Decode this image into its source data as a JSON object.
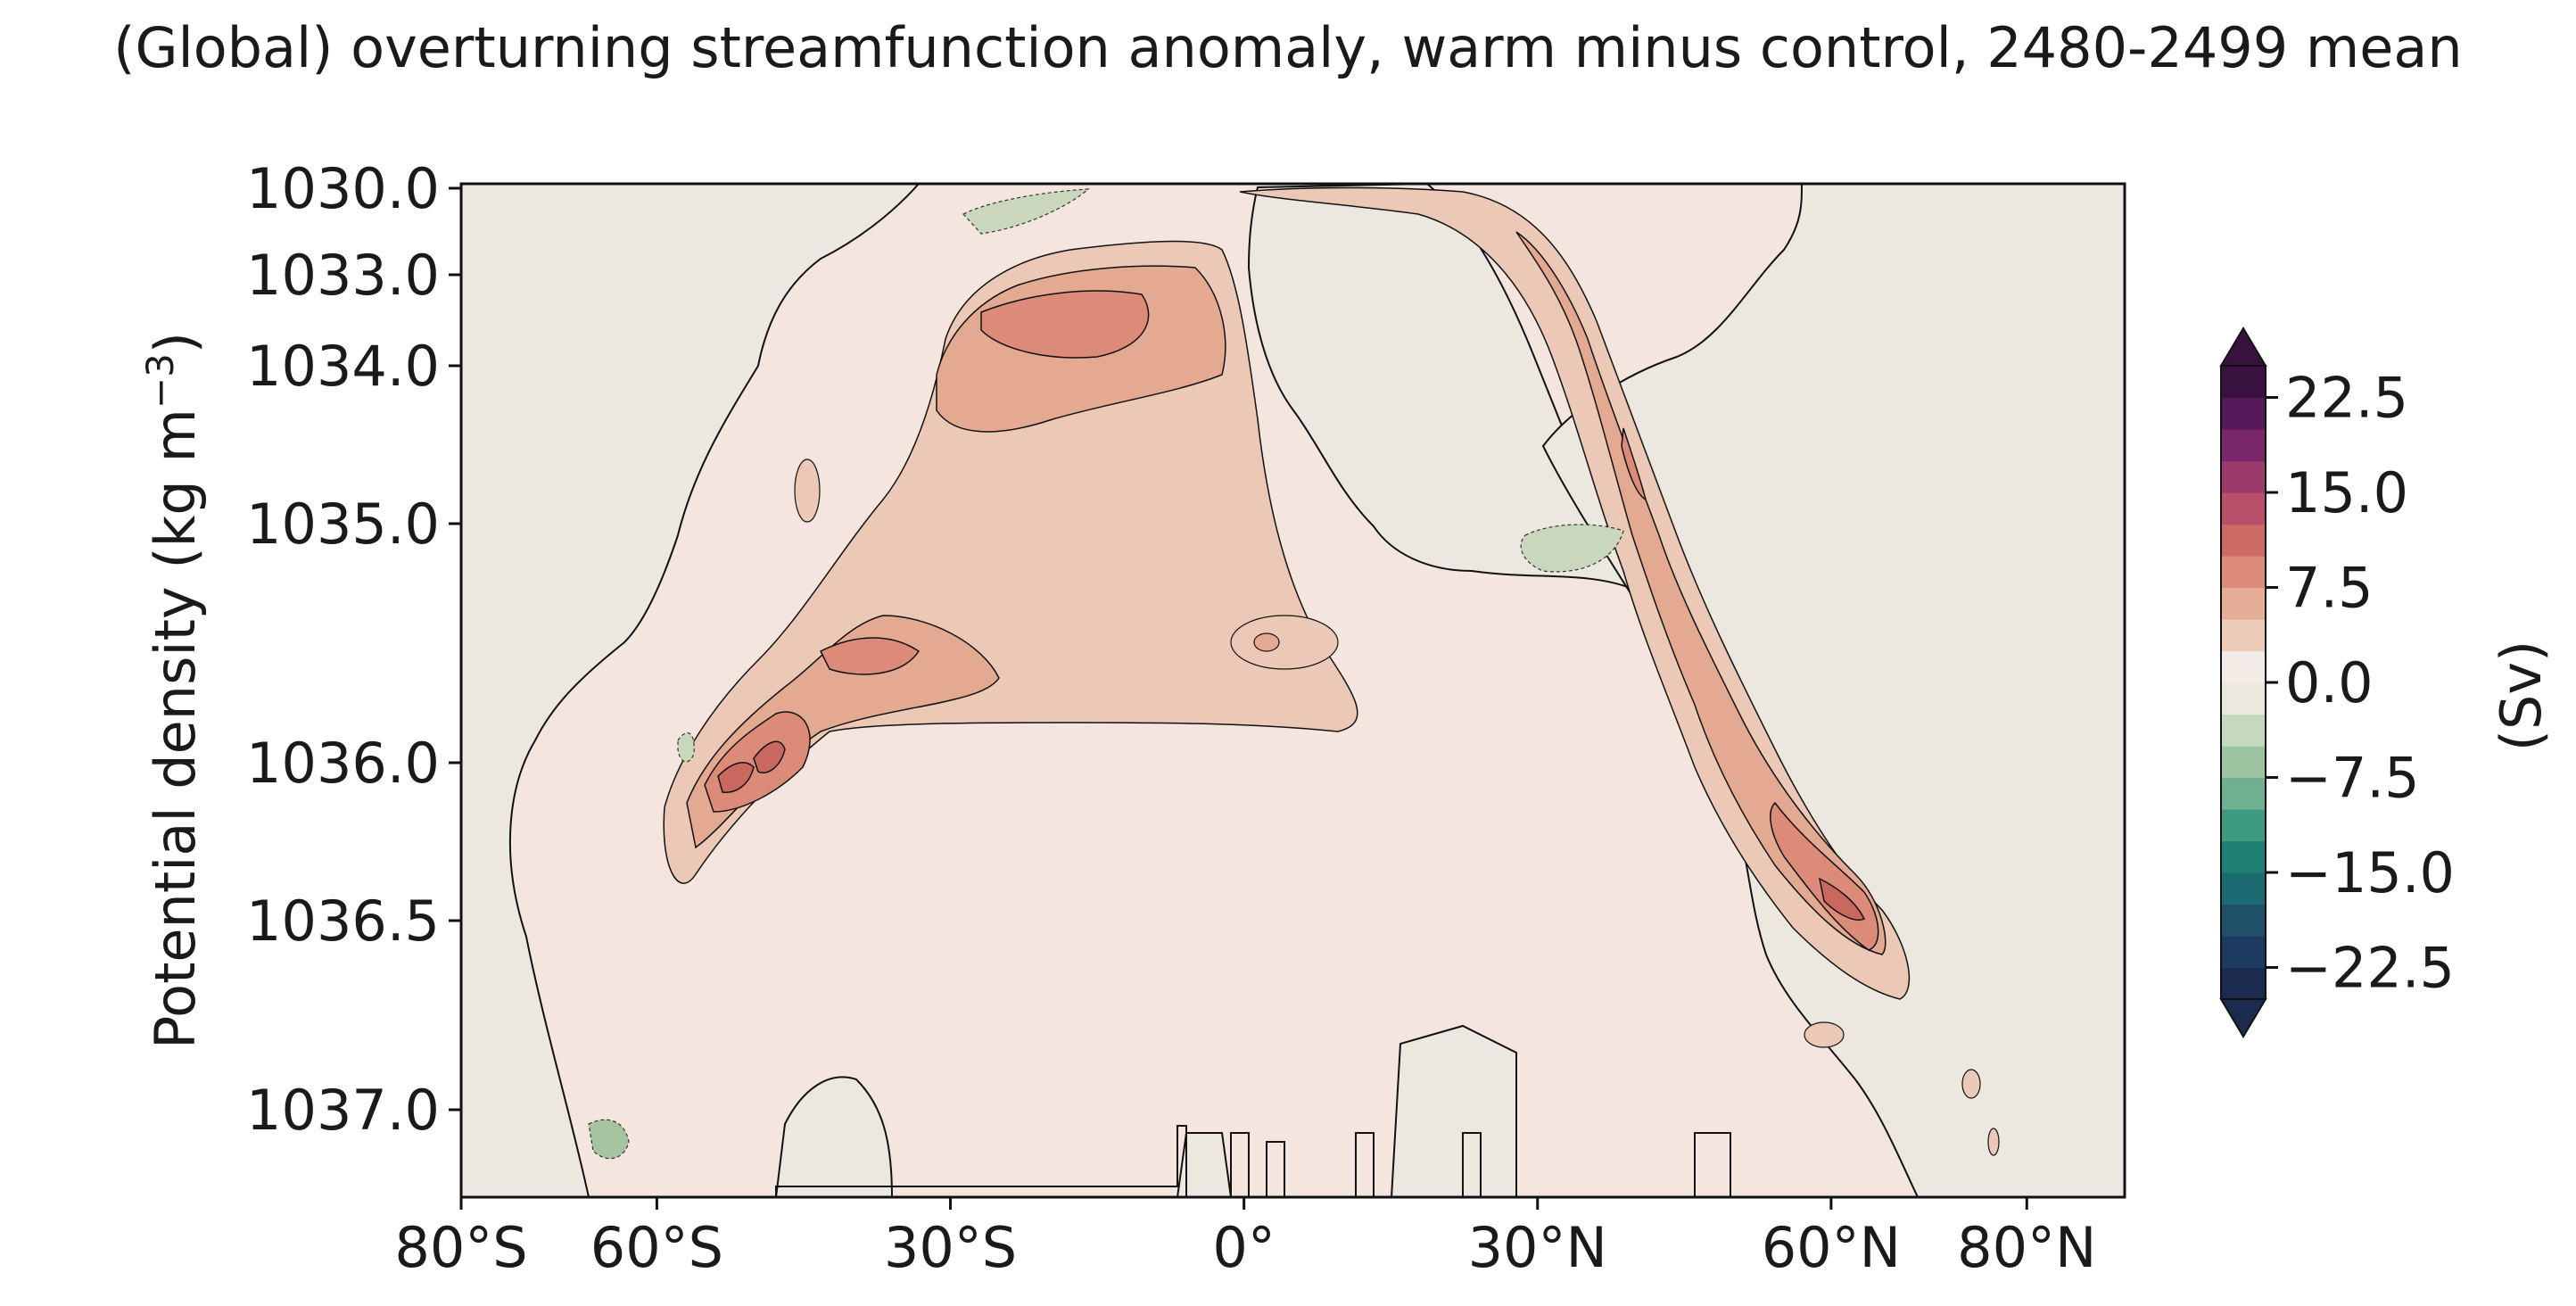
{
  "chart_data": {
    "type": "heatmap",
    "title": "(Global) overturning streamfunction anomaly, warm minus control, 2480-2499 mean",
    "ylabel": "Potential density (kg m⁻³)",
    "ylabel_base": "Potential density (kg m",
    "ylabel_sup": "−3",
    "ylabel_end": ")",
    "x_ticks": [
      {
        "value": -80,
        "label": "80°S"
      },
      {
        "value": -60,
        "label": "60°S"
      },
      {
        "value": -30,
        "label": "30°S"
      },
      {
        "value": 0,
        "label": "0°"
      },
      {
        "value": 30,
        "label": "30°N"
      },
      {
        "value": 60,
        "label": "60°N"
      },
      {
        "value": 80,
        "label": "80°N"
      }
    ],
    "xlim": [
      -80,
      90
    ],
    "y_ticks": [
      {
        "value": 1030.0,
        "label": "1030.0"
      },
      {
        "value": 1033.0,
        "label": "1033.0"
      },
      {
        "value": 1034.0,
        "label": "1034.0"
      },
      {
        "value": 1035.0,
        "label": "1035.0"
      },
      {
        "value": 1036.0,
        "label": "1036.0"
      },
      {
        "value": 1036.5,
        "label": "1036.5"
      },
      {
        "value": 1037.0,
        "label": "1037.0"
      }
    ],
    "y_axis_inverted": true,
    "colorbar": {
      "label": "(Sv)",
      "ticks": [
        {
          "value": 22.5,
          "label": "22.5"
        },
        {
          "value": 15.0,
          "label": "15.0"
        },
        {
          "value": 7.5,
          "label": "7.5"
        },
        {
          "value": 0.0,
          "label": "0.0"
        },
        {
          "value": -7.5,
          "label": "−7.5"
        },
        {
          "value": -15.0,
          "label": "−15.0"
        },
        {
          "value": -22.5,
          "label": "−22.5"
        }
      ],
      "range": [
        -25,
        25
      ],
      "extend": "both"
    },
    "features": [
      {
        "name": "Southern upper cell positive anomaly",
        "lat_range": [
          -57,
          -5
        ],
        "density_range": [
          1033.2,
          1036.3
        ],
        "peak_sv": 12
      },
      {
        "name": "North Atlantic descending positive anomaly band",
        "lat_range": [
          0,
          68
        ],
        "density_range": [
          1030.0,
          1036.7
        ],
        "peak_sv": 12
      },
      {
        "name": "Negative anomaly patches",
        "values_sv": [
          -2.5,
          -5
        ]
      }
    ]
  },
  "colors": {
    "background_field": "#f4e6df",
    "neutral_region": "#ece8e0",
    "pos_2_5": "#ecc9b6",
    "pos_5_0": "#e4a991",
    "pos_7_5": "#dc8b78",
    "pos_10_0": "#c8685f",
    "neg_2_5": "#c9d8bd",
    "neg_5_0": "#a7c4a0",
    "colorbar_levels": [
      "#1b2a4f",
      "#1d3b61",
      "#1e5068",
      "#1c6a72",
      "#1f8176",
      "#3f9a82",
      "#6fb090",
      "#9cc49f",
      "#c6d8be",
      "#ece8e0",
      "#f3ebe6",
      "#edcdb9",
      "#e6ad96",
      "#dd8c7b",
      "#cc6a65",
      "#b8506a",
      "#9c3a6c",
      "#782868",
      "#55195a",
      "#3a1240"
    ]
  }
}
